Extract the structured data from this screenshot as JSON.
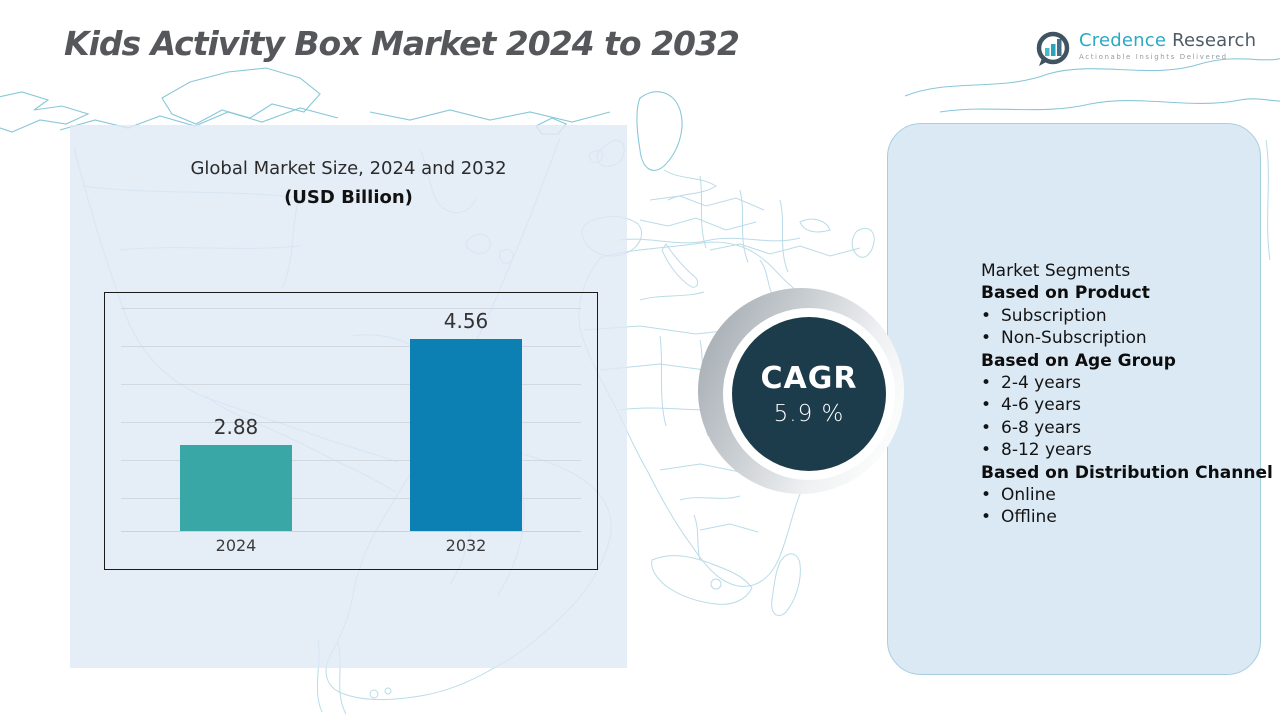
{
  "header": {
    "title": "Kids Activity Box Market 2024 to 2032",
    "logo": {
      "brand_primary": "Credence",
      "brand_secondary": "Research",
      "tagline": "Actionable Insights Delivered"
    }
  },
  "chart_data": {
    "type": "bar",
    "title": "Global Market Size, 2024 and 2032",
    "subtitle": "(USD Billion)",
    "categories": [
      "2024",
      "2032"
    ],
    "values": [
      2.88,
      4.56
    ],
    "value_labels": [
      "2.88",
      "4.56"
    ],
    "xlabel": "",
    "ylabel": "USD Billion",
    "ylim": [
      1.5,
      5.3
    ],
    "grid": true,
    "legend": "none",
    "bar_colors": [
      "#38a7a5",
      "#0c80b2"
    ]
  },
  "cagr": {
    "label": "CAGR",
    "value": "5.9 %"
  },
  "segments": {
    "title": "Market Segments",
    "sections": [
      {
        "heading": "Based on Product",
        "items": [
          "Subscription",
          "Non-Subscription"
        ]
      },
      {
        "heading": "Based on Age Group",
        "items": [
          "2-4 years",
          "4-6 years",
          "6-8 years",
          "8-12 years"
        ]
      },
      {
        "heading": "Based on Distribution Channel",
        "items": [
          "Online",
          "Offline"
        ]
      }
    ]
  },
  "palette": {
    "bar_2024": "#38a7a5",
    "bar_2032": "#0c80b2",
    "cagr_circle": "#1d3c4b",
    "brand_teal": "#2aaac6",
    "map_line": "#9ccfe0"
  }
}
